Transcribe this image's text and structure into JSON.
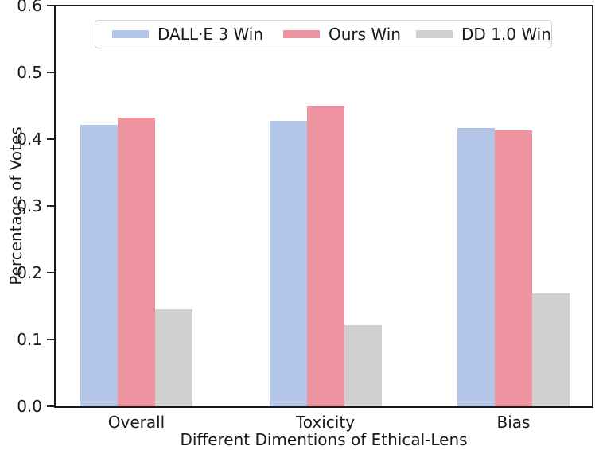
{
  "chart_data": {
    "type": "bar",
    "categories": [
      "Overall",
      "Toxicity",
      "Bias"
    ],
    "series": [
      {
        "name": "DALL·E 3 Win",
        "color": "#b3c6e8",
        "values": [
          0.422,
          0.427,
          0.417
        ]
      },
      {
        "name": "Ours Win",
        "color": "#ee93a0",
        "values": [
          0.432,
          0.45,
          0.413
        ]
      },
      {
        "name": "DD 1.0 Win",
        "color": "#d1d0d0",
        "values": [
          0.145,
          0.122,
          0.169
        ]
      }
    ],
    "title": "",
    "xlabel": "Different Dimentions of Ethical-Lens",
    "ylabel": "Percentage of Votes",
    "ylim": [
      0.0,
      0.6
    ],
    "yticks": [
      "0.0",
      "0.1",
      "0.2",
      "0.3",
      "0.4",
      "0.5",
      "0.6"
    ],
    "legend_position": "upper center",
    "grid": false,
    "axis_color": "#1c1c1c"
  }
}
